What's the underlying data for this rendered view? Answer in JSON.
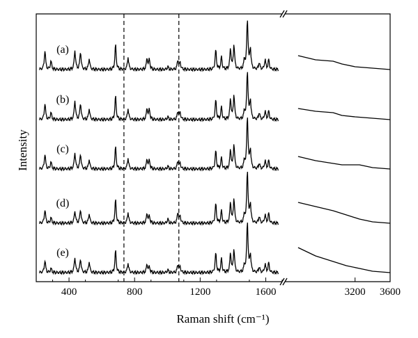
{
  "chart_data": {
    "type": "line",
    "xlabel": "Raman shift (cm⁻¹)",
    "ylabel": "Intensity",
    "x_axis": {
      "broken": true,
      "segments": [
        {
          "range": [
            200,
            1700
          ],
          "ticks": [
            400,
            800,
            1200,
            1600
          ]
        },
        {
          "range": [
            2400,
            3600
          ],
          "ticks": [
            3200,
            3600
          ]
        }
      ],
      "tick_labels": [
        "400",
        "800",
        "1200",
        "1600",
        "3200",
        "3600"
      ]
    },
    "y_ticks": "none",
    "reference_lines": [
      {
        "x": 735,
        "style": "dashed"
      },
      {
        "x": 1070,
        "style": "dashed"
      }
    ],
    "series": [
      {
        "name": "(a)",
        "peaks": [
          [
            253,
            14
          ],
          [
            290,
            6
          ],
          [
            436,
            14
          ],
          [
            470,
            13
          ],
          [
            523,
            8
          ],
          [
            684,
            18
          ],
          [
            760,
            9
          ],
          [
            876,
            8
          ],
          [
            890,
            7
          ],
          [
            1003,
            2
          ],
          [
            1064,
            7
          ],
          [
            1078,
            5
          ],
          [
            1295,
            14
          ],
          [
            1330,
            9
          ],
          [
            1385,
            15
          ],
          [
            1406,
            18
          ],
          [
            1470,
            7
          ],
          [
            1488,
            36
          ],
          [
            1506,
            15
          ],
          [
            1560,
            5
          ],
          [
            1596,
            7
          ],
          [
            1618,
            7
          ]
        ],
        "high_region": [
          [
            2550,
            10
          ],
          [
            2750,
            7
          ],
          [
            2950,
            6
          ],
          [
            3050,
            4
          ],
          [
            3200,
            2
          ],
          [
            3400,
            1
          ],
          [
            3600,
            0
          ]
        ]
      },
      {
        "name": "(b)",
        "peaks": [
          [
            253,
            12
          ],
          [
            290,
            5
          ],
          [
            436,
            14
          ],
          [
            470,
            12
          ],
          [
            523,
            8
          ],
          [
            684,
            17
          ],
          [
            760,
            8
          ],
          [
            876,
            8
          ],
          [
            890,
            7
          ],
          [
            1003,
            2
          ],
          [
            1064,
            6
          ],
          [
            1078,
            5
          ],
          [
            1295,
            14
          ],
          [
            1330,
            9
          ],
          [
            1385,
            15
          ],
          [
            1406,
            18
          ],
          [
            1470,
            6
          ],
          [
            1488,
            35
          ],
          [
            1506,
            14
          ],
          [
            1560,
            5
          ],
          [
            1596,
            6
          ],
          [
            1618,
            6
          ]
        ],
        "high_region": [
          [
            2550,
            8
          ],
          [
            2750,
            6
          ],
          [
            2950,
            5
          ],
          [
            3050,
            3
          ],
          [
            3200,
            2
          ],
          [
            3400,
            1
          ],
          [
            3600,
            0
          ]
        ]
      },
      {
        "name": "(c)",
        "peaks": [
          [
            253,
            11
          ],
          [
            290,
            5
          ],
          [
            436,
            12
          ],
          [
            470,
            11
          ],
          [
            523,
            7
          ],
          [
            684,
            16
          ],
          [
            760,
            8
          ],
          [
            876,
            7
          ],
          [
            890,
            6
          ],
          [
            1003,
            2
          ],
          [
            1064,
            6
          ],
          [
            1078,
            4
          ],
          [
            1295,
            13
          ],
          [
            1330,
            8
          ],
          [
            1385,
            14
          ],
          [
            1406,
            18
          ],
          [
            1470,
            6
          ],
          [
            1488,
            38
          ],
          [
            1506,
            14
          ],
          [
            1560,
            4
          ],
          [
            1596,
            6
          ],
          [
            1618,
            6
          ]
        ],
        "high_region": [
          [
            2550,
            9
          ],
          [
            2750,
            6
          ],
          [
            2950,
            4
          ],
          [
            3050,
            3
          ],
          [
            3250,
            3
          ],
          [
            3400,
            1
          ],
          [
            3600,
            0
          ]
        ]
      },
      {
        "name": "(d)",
        "peaks": [
          [
            253,
            10
          ],
          [
            290,
            4
          ],
          [
            436,
            9
          ],
          [
            470,
            10
          ],
          [
            523,
            7
          ],
          [
            684,
            17
          ],
          [
            760,
            8
          ],
          [
            876,
            7
          ],
          [
            890,
            5
          ],
          [
            1003,
            3
          ],
          [
            1064,
            8
          ],
          [
            1078,
            5
          ],
          [
            1295,
            14
          ],
          [
            1330,
            9
          ],
          [
            1385,
            15
          ],
          [
            1406,
            18
          ],
          [
            1470,
            6
          ],
          [
            1488,
            38
          ],
          [
            1506,
            14
          ],
          [
            1560,
            5
          ],
          [
            1596,
            6
          ],
          [
            1618,
            7
          ]
        ],
        "high_region": [
          [
            2550,
            15
          ],
          [
            2750,
            12
          ],
          [
            2950,
            9
          ],
          [
            3100,
            6
          ],
          [
            3250,
            3
          ],
          [
            3400,
            1
          ],
          [
            3600,
            0
          ]
        ]
      },
      {
        "name": "(e)",
        "peaks": [
          [
            253,
            9
          ],
          [
            290,
            3
          ],
          [
            436,
            11
          ],
          [
            470,
            10
          ],
          [
            523,
            8
          ],
          [
            684,
            16
          ],
          [
            760,
            7
          ],
          [
            876,
            6
          ],
          [
            890,
            4
          ],
          [
            1003,
            2
          ],
          [
            1064,
            6
          ],
          [
            1078,
            4
          ],
          [
            1295,
            14
          ],
          [
            1330,
            10
          ],
          [
            1385,
            14
          ],
          [
            1406,
            17
          ],
          [
            1470,
            5
          ],
          [
            1488,
            37
          ],
          [
            1506,
            13
          ],
          [
            1560,
            4
          ],
          [
            1596,
            6
          ],
          [
            1618,
            7
          ]
        ],
        "high_region": [
          [
            2550,
            18
          ],
          [
            2750,
            12
          ],
          [
            2950,
            8
          ],
          [
            3100,
            5
          ],
          [
            3250,
            3
          ],
          [
            3400,
            1
          ],
          [
            3600,
            0
          ]
        ]
      }
    ]
  }
}
